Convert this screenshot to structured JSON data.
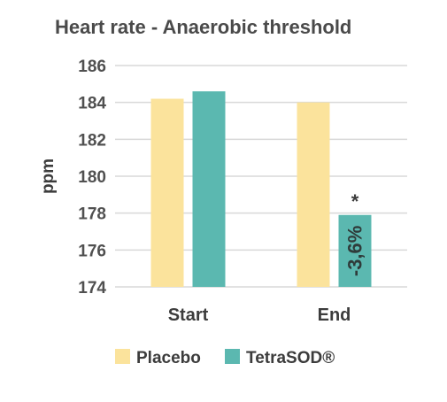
{
  "chart_data": {
    "type": "bar",
    "title": "Heart rate - Anaerobic threshold",
    "ylabel": "ppm",
    "xlabel": "",
    "ylim": [
      174,
      186
    ],
    "yticks": [
      174,
      176,
      178,
      180,
      182,
      184,
      186
    ],
    "categories": [
      "Start",
      "End"
    ],
    "series": [
      {
        "name": "Placebo",
        "values": [
          184.2,
          184.0
        ],
        "color": "#FBE39C"
      },
      {
        "name": "TetraSOD®",
        "values": [
          184.6,
          177.9
        ],
        "color": "#5BB8B0"
      }
    ],
    "grid": true,
    "legend": "bottom",
    "annotations": [
      {
        "category": "End",
        "series": "TetraSOD®",
        "label": "-3,6%"
      },
      {
        "category": "End",
        "series": "TetraSOD®",
        "label": "*"
      }
    ]
  }
}
